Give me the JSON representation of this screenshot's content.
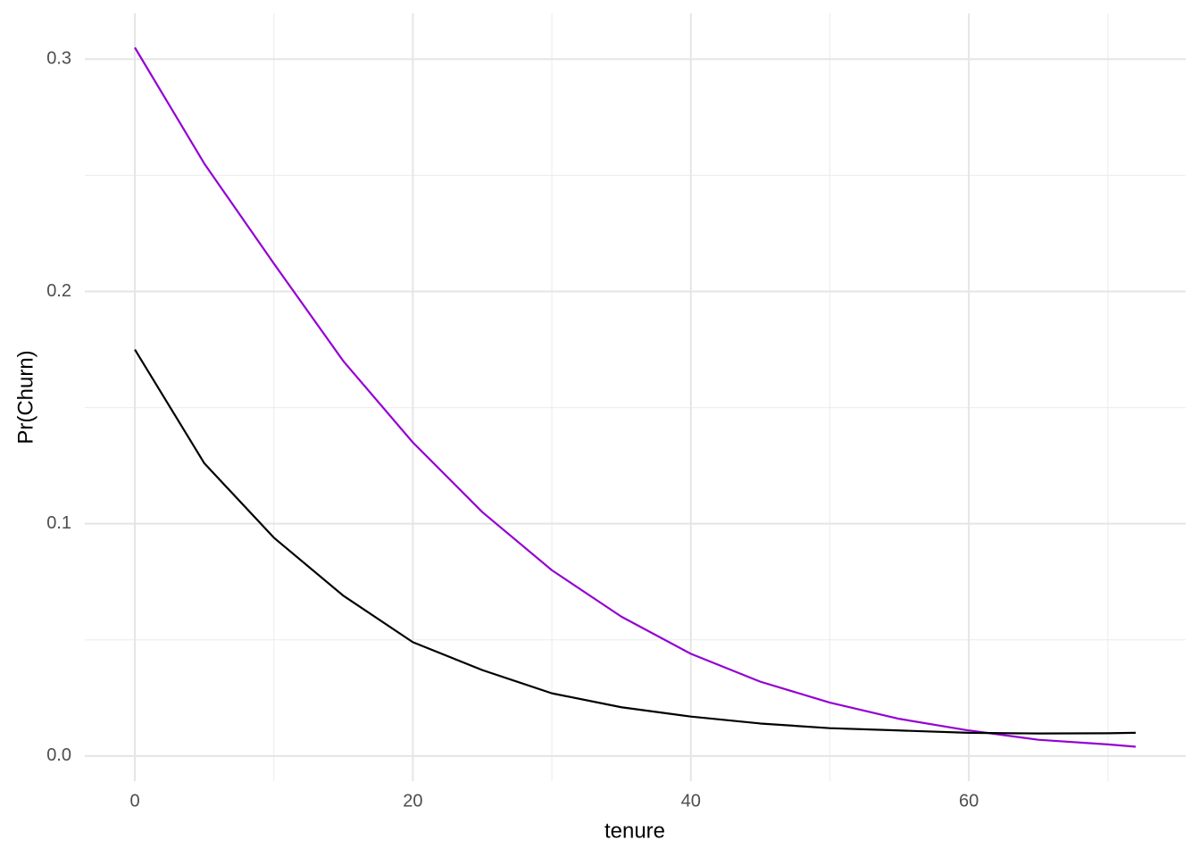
{
  "chart_data": {
    "type": "line",
    "x_label": "tenure",
    "y_label": "Pr(Churn)",
    "x": [
      0,
      5,
      10,
      15,
      20,
      25,
      30,
      35,
      40,
      45,
      50,
      55,
      60,
      65,
      70,
      72
    ],
    "series": [
      {
        "color": "#9400d3",
        "values": [
          0.305,
          0.255,
          0.212,
          0.17,
          0.135,
          0.105,
          0.08,
          0.06,
          0.044,
          0.032,
          0.023,
          0.016,
          0.011,
          0.007,
          0.005,
          0.004
        ]
      },
      {
        "color": "#000000",
        "values": [
          0.175,
          0.126,
          0.094,
          0.069,
          0.049,
          0.037,
          0.027,
          0.021,
          0.017,
          0.014,
          0.012,
          0.011,
          0.01,
          0.0097,
          0.0098,
          0.01
        ]
      }
    ],
    "xlim": [
      -3.6,
      75.6
    ],
    "xticks": [
      0,
      20,
      40,
      60
    ],
    "ylim": [
      -0.0108,
      0.3197
    ],
    "yticks": [
      {
        "value": 0,
        "label": "0.0"
      },
      {
        "value": 0.1,
        "label": "0.1"
      },
      {
        "value": 0.2,
        "label": "0.2"
      },
      {
        "value": 0.3,
        "label": "0.3"
      }
    ],
    "grid": true
  }
}
